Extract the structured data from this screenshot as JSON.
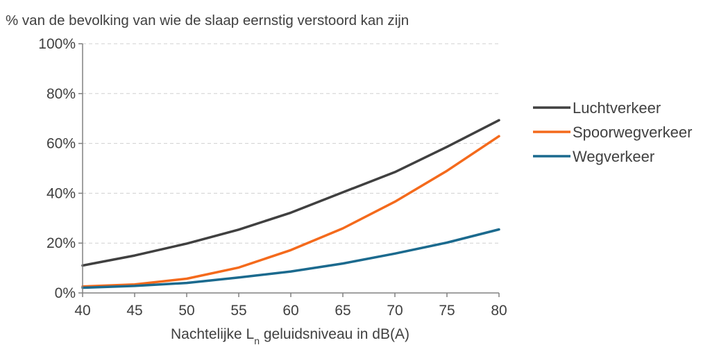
{
  "chart_data": {
    "type": "line",
    "title": "% van de bevolking van wie de slaap eernstig verstoord kan zijn",
    "xlabel_parts": {
      "before": "Nachtelijke L",
      "sub": "n",
      "after": " geluidsniveau in dB(A)"
    },
    "x": [
      40,
      45,
      50,
      55,
      60,
      65,
      70,
      75,
      80
    ],
    "x_ticks": [
      "40",
      "45",
      "50",
      "55",
      "60",
      "65",
      "70",
      "75",
      "80"
    ],
    "xlim": [
      40,
      80
    ],
    "ylim": [
      0,
      100
    ],
    "y_ticks": [
      {
        "value": 0,
        "label": "0%"
      },
      {
        "value": 20,
        "label": "20%"
      },
      {
        "value": 40,
        "label": "40%"
      },
      {
        "value": 60,
        "label": "60%"
      },
      {
        "value": 80,
        "label": "80%"
      },
      {
        "value": 100,
        "label": "100%"
      }
    ],
    "grid": "horizontal-dashed",
    "legend_position": "right",
    "series": [
      {
        "name": "Luchtverkeer",
        "color": "#404040",
        "values": [
          11,
          15,
          19.8,
          25.4,
          32.2,
          40.4,
          48.5,
          58.6,
          69.3
        ]
      },
      {
        "name": "Spoorwegverkeer",
        "color": "#f46a1c",
        "values": [
          2.6,
          3.4,
          5.7,
          10.2,
          17.2,
          25.9,
          36.6,
          49,
          62.9
        ]
      },
      {
        "name": "Wegverkeer",
        "color": "#1b6a8e",
        "values": [
          2.1,
          2.8,
          4,
          6.2,
          8.6,
          11.8,
          15.8,
          20.2,
          25.5
        ]
      }
    ]
  }
}
